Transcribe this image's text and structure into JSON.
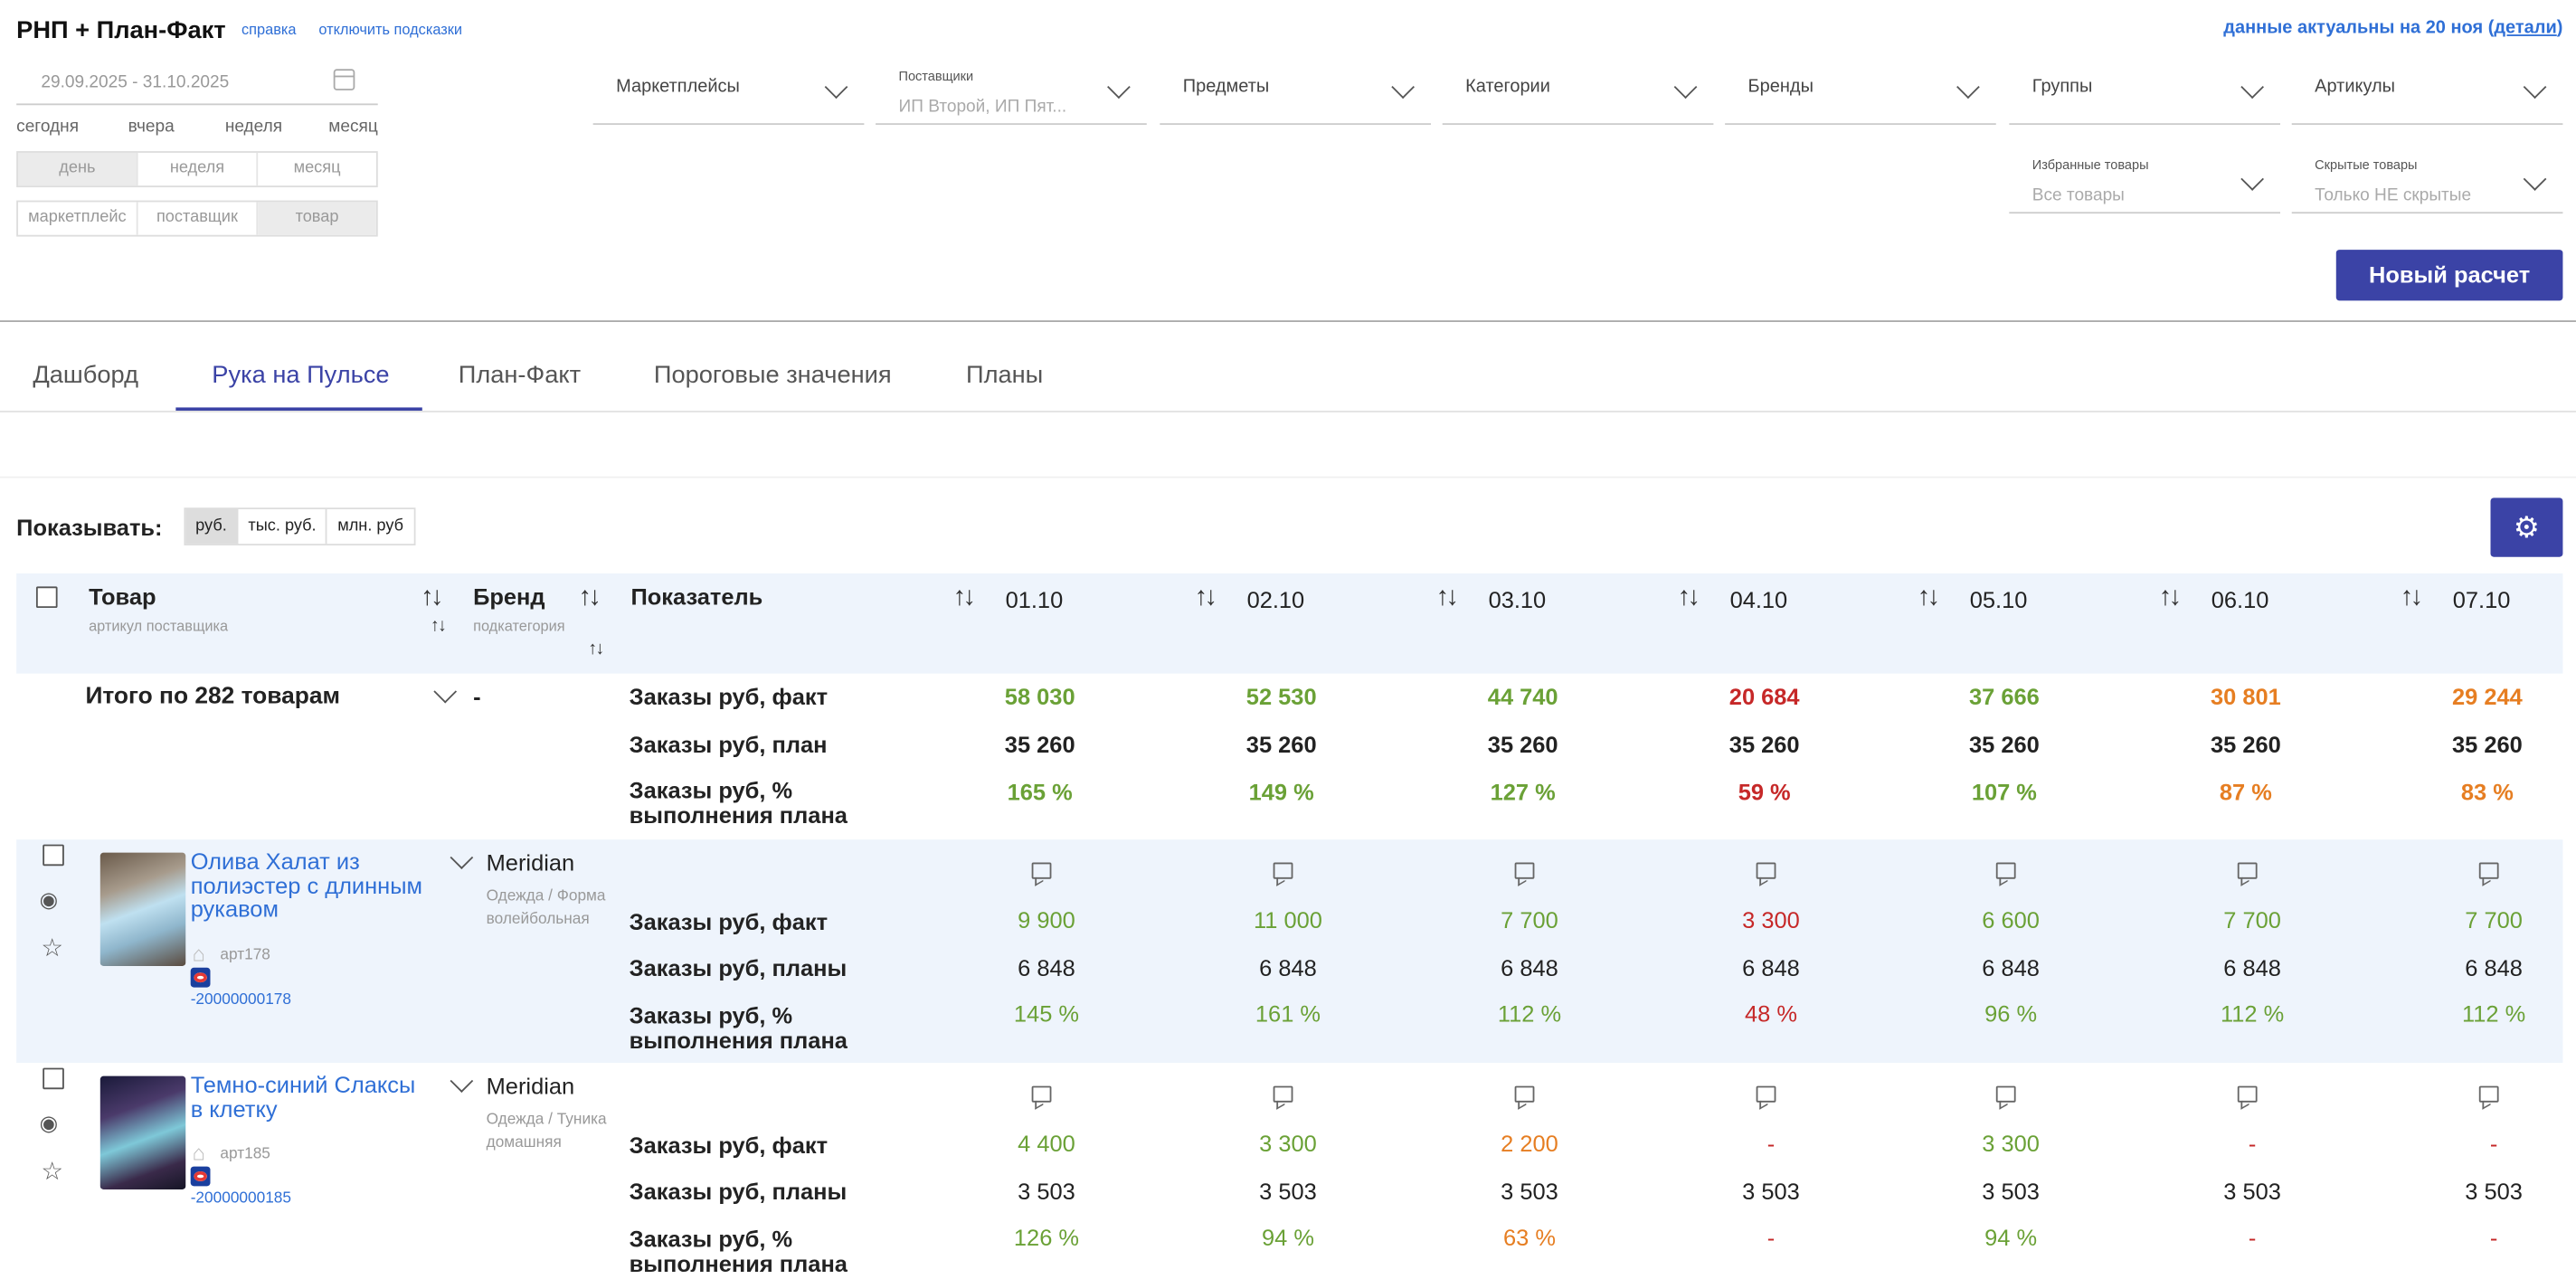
{
  "header": {
    "title": "РНП + План-Факт",
    "help": "справка",
    "hints_off": "отключить подсказки",
    "fresh_prefix": "данные актуальны на 20 ноя (",
    "fresh_link": "детали",
    "fresh_suffix": ")"
  },
  "date_range": "29.09.2025 - 31.10.2025",
  "quick_dates": [
    "сегодня",
    "вчера",
    "неделя",
    "месяц"
  ],
  "period": [
    "день",
    "неделя",
    "месяц"
  ],
  "grouping": [
    "маркетплейс",
    "поставщик",
    "товар"
  ],
  "filters": {
    "marketplaces": "Маркетплейсы",
    "suppliers_label": "Поставщики",
    "suppliers_value": "ИП Второй, ИП Пят...",
    "subjects": "Предметы",
    "categories": "Категории",
    "brands": "Бренды",
    "groups": "Группы",
    "articles": "Артикулы",
    "fav_label": "Избранные товары",
    "fav_value": "Все товары",
    "hidden_label": "Скрытые товары",
    "hidden_value": "Только НЕ скрытые"
  },
  "new_calc": "Новый расчет",
  "tabs": [
    "Дашборд",
    "Рука на Пульсе",
    "План-Факт",
    "Пороговые значения",
    "Планы"
  ],
  "show_label": "Показывать:",
  "units": [
    "руб.",
    "тыс. руб.",
    "млн. руб"
  ],
  "table": {
    "col_product": "Товар",
    "col_product_sub": "артикул поставщика",
    "col_brand": "Бренд",
    "col_brand_sub": "подкатегория",
    "col_indicator": "Показатель",
    "dates": [
      "01.10",
      "02.10",
      "03.10",
      "04.10",
      "05.10",
      "06.10",
      "07.10"
    ],
    "total": {
      "label": "Итого по 282 товарам",
      "brand": "-",
      "indicators": [
        "Заказы руб, факт",
        "Заказы руб, план",
        "Заказы руб, %",
        "выполнения плана"
      ],
      "fact": [
        "58 030",
        "52 530",
        "44 740",
        "20 684",
        "37 666",
        "30 801",
        "29 244"
      ],
      "plan": [
        "35 260",
        "35 260",
        "35 260",
        "35 260",
        "35 260",
        "35 260",
        "35 260"
      ],
      "pct": [
        "165 %",
        "149 %",
        "127 %",
        "59 %",
        "107 %",
        "87 %",
        "83 %"
      ]
    },
    "products": [
      {
        "name": [
          "Олива Халат из",
          "полиэстер с длинным",
          "рукавом"
        ],
        "article": "арт178",
        "barcode": "-20000000178",
        "brand": "Meridian",
        "sub": [
          "Одежда / Форма",
          "волейбольная"
        ],
        "indicators": [
          "Заказы руб, факт",
          "Заказы руб, планы",
          "Заказы руб, %",
          "выполнения плана"
        ],
        "fact": [
          "9 900",
          "11 000",
          "7 700",
          "3 300",
          "6 600",
          "7 700",
          "7 700"
        ],
        "plan": [
          "6 848",
          "6 848",
          "6 848",
          "6 848",
          "6 848",
          "6 848",
          "6 848"
        ],
        "pct": [
          "145 %",
          "161 %",
          "112 %",
          "48 %",
          "96 %",
          "112 %",
          "112 %"
        ]
      },
      {
        "name": [
          "Темно-синий Слаксы",
          "в клетку"
        ],
        "article": "арт185",
        "barcode": "-20000000185",
        "brand": "Meridian",
        "sub": [
          "Одежда / Туника",
          "домашняя"
        ],
        "indicators": [
          "Заказы руб, факт",
          "Заказы руб, планы",
          "Заказы руб, %",
          "выполнения плана"
        ],
        "fact": [
          "4 400",
          "3 300",
          "2 200",
          "-",
          "3 300",
          "-",
          "-"
        ],
        "plan": [
          "3 503",
          "3 503",
          "3 503",
          "3 503",
          "3 503",
          "3 503",
          "3 503"
        ],
        "pct": [
          "126 %",
          "94 %",
          "63 %",
          "-",
          "94 %",
          "-",
          "-"
        ]
      }
    ]
  },
  "colors": {
    "accent": "#3b43a6",
    "link": "#2f6fd6",
    "good": "#6aa136",
    "bad": "#c62828",
    "warn": "#e67e22",
    "header_bg": "#eef4fc"
  }
}
